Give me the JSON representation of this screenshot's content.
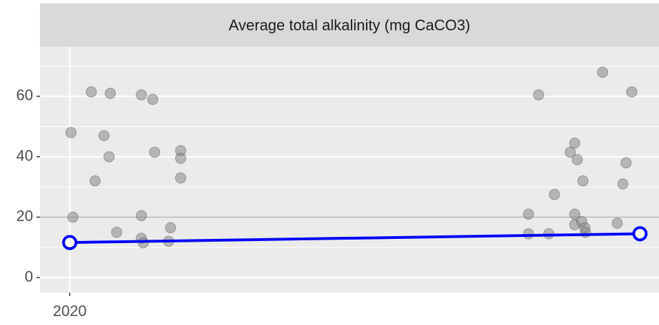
{
  "chart_data": {
    "type": "scatter",
    "title": "Average total alkalinity (mg CaCO3)",
    "x": [
      2020.002,
      2020.005,
      2020.034,
      2020.04,
      2020.054,
      2020.062,
      2020.064,
      2020.074,
      2020.113,
      2020.113,
      2020.113,
      2020.116,
      2020.131,
      2020.134,
      2020.156,
      2020.159,
      2020.175,
      2020.175,
      2020.175,
      2020.724,
      2020.724,
      2020.74,
      2020.756,
      2020.765,
      2020.79,
      2020.797,
      2020.801,
      2020.797,
      2020.797,
      2020.81,
      2020.808,
      2020.813,
      2020.814,
      2020.841,
      2020.864,
      2020.873,
      2020.878,
      2020.887
    ],
    "values": [
      48,
      20,
      61.5,
      32,
      47,
      40,
      61,
      15,
      60.5,
      20.5,
      13,
      11.5,
      59,
      41.5,
      12,
      16.5,
      42,
      39.5,
      33,
      21,
      14.5,
      60.5,
      14.5,
      27.5,
      41.5,
      44.5,
      39,
      21,
      17.5,
      32,
      18.5,
      16.5,
      15,
      68,
      18,
      31,
      38,
      61.5
    ],
    "color": "#808080",
    "line": {
      "x": [
        2020,
        2020.9
      ],
      "values": [
        11.6,
        14.5
      ],
      "color": "#0000ff"
    },
    "xlim": [
      2019.953,
      2020.93
    ],
    "xticks": [
      2020
    ],
    "ylim": [
      -5,
      76.4
    ],
    "yticks": [
      0,
      20,
      40,
      60
    ],
    "yminorticks": [
      10,
      30,
      50,
      70
    ],
    "hline": 20,
    "grid": true
  }
}
